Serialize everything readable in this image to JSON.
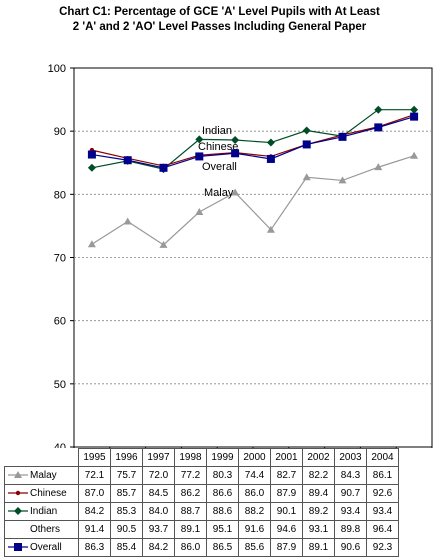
{
  "chart_data": {
    "type": "line",
    "title": "Chart C1: Percentage of GCE 'A' Level Pupils with At Least",
    "subtitle": "2 'A' and 2 'AO' Level Passes Including General Paper",
    "x": [
      "1995",
      "1996",
      "1997",
      "1998",
      "1999",
      "2000",
      "2001",
      "2002",
      "2003",
      "2004"
    ],
    "ylim": [
      40,
      100
    ],
    "yticks": [
      "40",
      "50",
      "60",
      "70",
      "80",
      "90",
      "100"
    ],
    "grid": true,
    "series": [
      {
        "name": "Malay",
        "color": "#999999",
        "marker": "triangle",
        "values": [
          72.1,
          75.7,
          72.0,
          77.2,
          80.3,
          74.4,
          82.7,
          82.2,
          84.3,
          86.1
        ],
        "display": [
          "72.1",
          "75.7",
          "72.0",
          "77.2",
          "80.3",
          "74.4",
          "82.7",
          "82.2",
          "84.3",
          "86.1"
        ]
      },
      {
        "name": "Chinese",
        "color": "#8b0000",
        "marker": "dot",
        "values": [
          87.0,
          85.7,
          84.5,
          86.2,
          86.6,
          86.0,
          87.9,
          89.4,
          90.7,
          92.6
        ],
        "display": [
          "87.0",
          "85.7",
          "84.5",
          "86.2",
          "86.6",
          "86.0",
          "87.9",
          "89.4",
          "90.7",
          "92.6"
        ]
      },
      {
        "name": "Indian",
        "color": "#004d26",
        "marker": "diamond",
        "values": [
          84.2,
          85.3,
          84.0,
          88.7,
          88.6,
          88.2,
          90.1,
          89.2,
          93.4,
          93.4
        ],
        "display": [
          "84.2",
          "85.3",
          "84.0",
          "88.7",
          "88.6",
          "88.2",
          "90.1",
          "89.2",
          "93.4",
          "93.4"
        ]
      },
      {
        "name": "Others",
        "color": "none",
        "marker": "none",
        "values": [
          91.4,
          90.5,
          93.7,
          89.1,
          95.1,
          91.6,
          94.6,
          93.1,
          89.8,
          96.4
        ],
        "display": [
          "91.4",
          "90.5",
          "93.7",
          "89.1",
          "95.1",
          "91.6",
          "94.6",
          "93.1",
          "89.8",
          "96.4"
        ]
      },
      {
        "name": "Overall",
        "color": "#00008b",
        "marker": "square",
        "values": [
          86.3,
          85.4,
          84.2,
          86.0,
          86.5,
          85.6,
          87.9,
          89.1,
          90.6,
          92.3
        ],
        "display": [
          "86.3",
          "85.4",
          "84.2",
          "86.0",
          "86.5",
          "85.6",
          "87.9",
          "89.1",
          "90.6",
          "92.3"
        ]
      }
    ],
    "annotations": [
      "Indian",
      "Chinese",
      "Overall",
      "Malay"
    ]
  }
}
